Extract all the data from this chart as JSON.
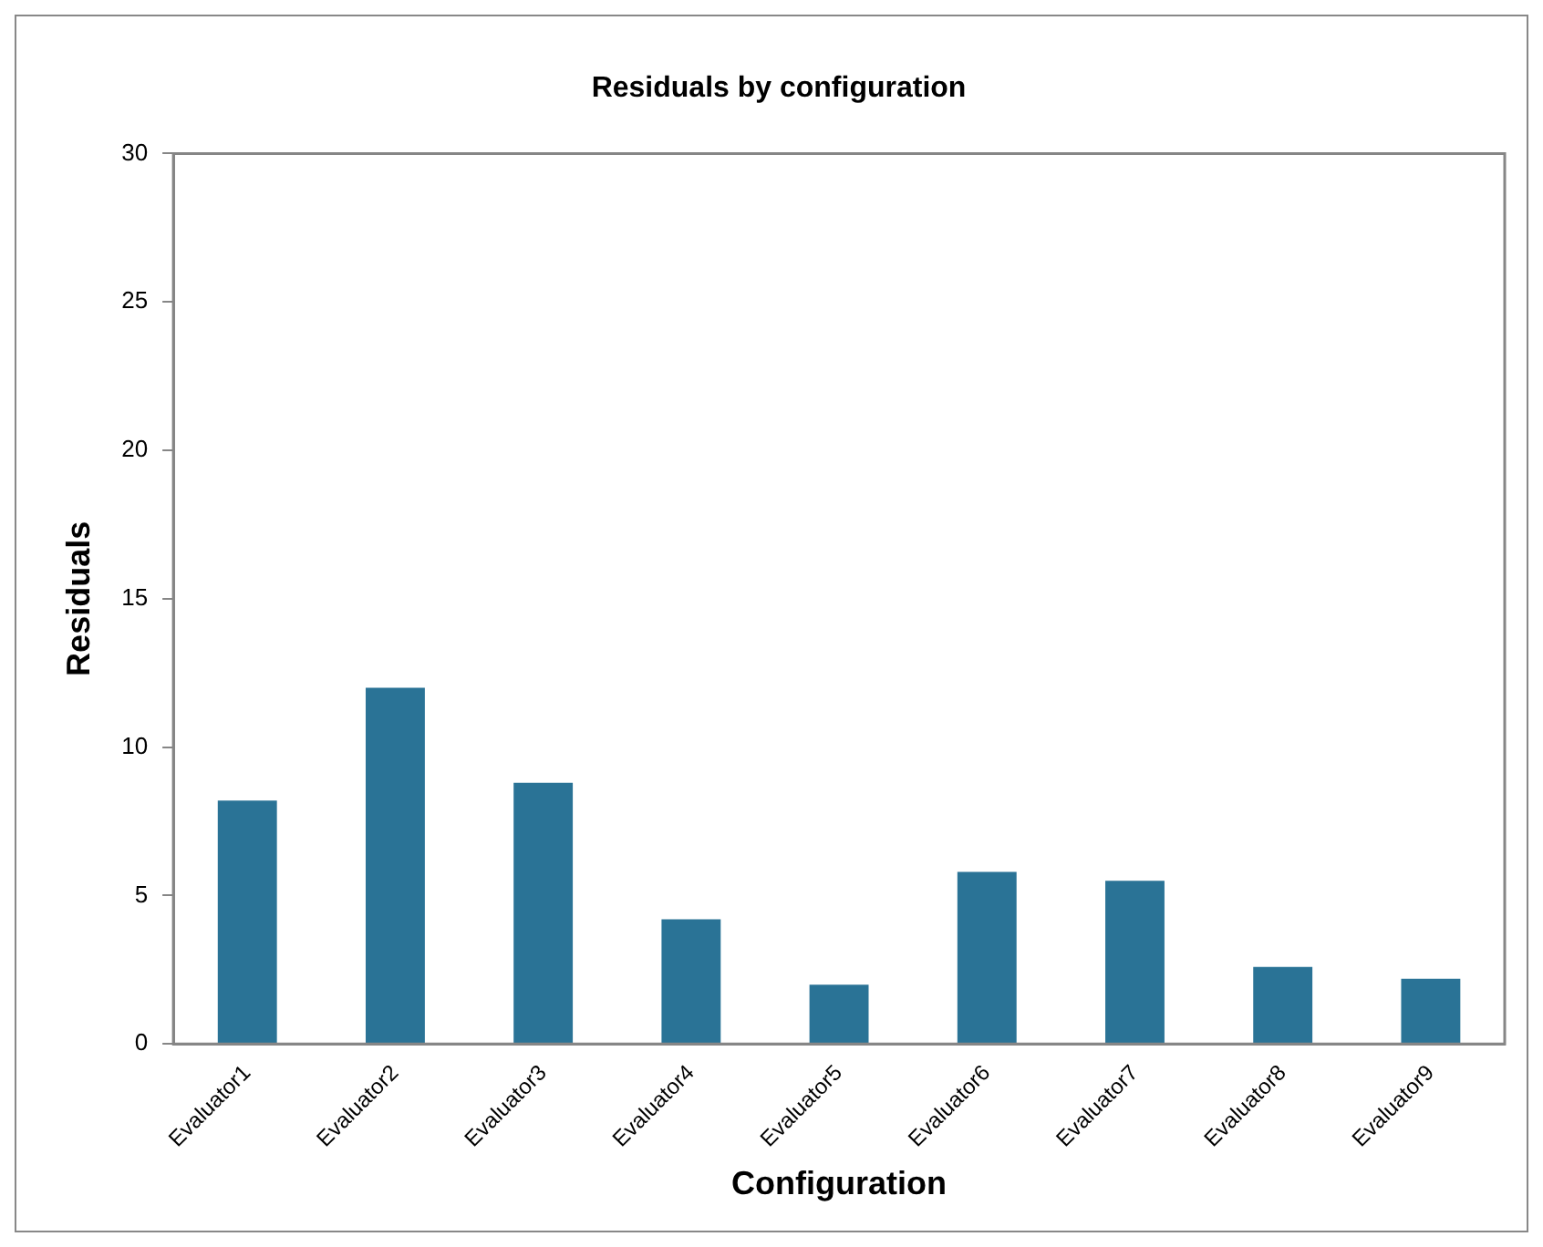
{
  "chart_data": {
    "type": "bar",
    "title": "Residuals by configuration",
    "xlabel": "Configuration",
    "ylabel": "Residuals",
    "categories": [
      "Evaluator1",
      "Evaluator2",
      "Evaluator3",
      "Evaluator4",
      "Evaluator5",
      "Evaluator6",
      "Evaluator7",
      "Evaluator8",
      "Evaluator9"
    ],
    "values": [
      8.2,
      12.0,
      8.8,
      4.2,
      2.0,
      5.8,
      5.5,
      2.6,
      2.2
    ],
    "color": "#2a7396",
    "ylim": [
      0,
      30
    ],
    "yticks": [
      0,
      5,
      10,
      15,
      20,
      25,
      30
    ],
    "grid": false,
    "legend": false
  }
}
